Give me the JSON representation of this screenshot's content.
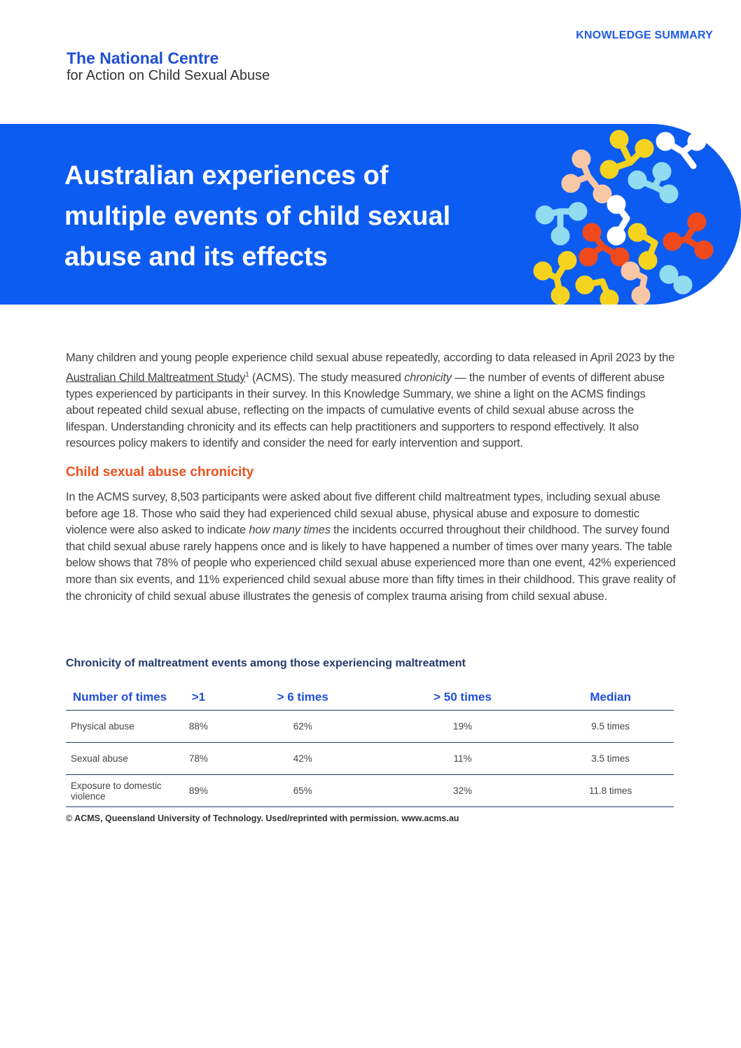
{
  "header": {
    "label": "KNOWLEDGE SUMMARY",
    "org_name": "The National Centre",
    "org_sub": "for Action on Child Sexual Abuse"
  },
  "banner": {
    "title_lines": [
      "Australian experiences of",
      "multiple events of child sexual",
      "abuse and its effects"
    ]
  },
  "intro": {
    "before_link": "Many children and young people experience child sexual abuse repeatedly, according to data released in April 2023 by the ",
    "link": "Australian Child Maltreatment Study",
    "footnote": "1",
    "after_link": " (ACMS). The study measured ",
    "term": "chronicity",
    "rest": "  — the number of events of different abuse types experienced by participants in their survey. In this Knowledge Summary, we shine a light on the ACMS findings about repeated child sexual abuse, reflecting on the impacts of cumulative events of child sexual abuse across the lifespan. Understanding chronicity and its effects can help practitioners and supporters to respond effectively. It also resources policy makers to identify and consider the need for early intervention and support."
  },
  "section": {
    "heading": "Child sexual abuse chronicity",
    "before_em": "In the ACMS survey, 8,503 participants were asked about five different child maltreatment types, including sexual abuse before age 18. Those who said they had experienced child sexual abuse, physical abuse and exposure to domestic violence were also asked to indicate ",
    "em": "how many times",
    "after_em": " the incidents occurred throughout their childhood. The survey found that child sexual abuse rarely happens once and is likely to have happened a number of times over many years. The table below shows that 78% of people who experienced child sexual abuse experienced more than one event, 42% experienced more than six events, and 11% experienced child sexual abuse more than fifty times in their childhood. This grave reality of the chronicity of child sexual abuse illustrates the genesis of complex trauma arising from child sexual abuse."
  },
  "table": {
    "caption": "Chronicity of maltreatment events among those experiencing maltreatment",
    "columns": [
      "Number of times",
      ">1",
      "> 6 times",
      "> 50 times",
      "Median"
    ],
    "rows": [
      [
        "Physical abuse",
        "88%",
        "62%",
        "19%",
        "9.5 times"
      ],
      [
        "Sexual abuse",
        "78%",
        "42%",
        "11%",
        "3.5 times"
      ],
      [
        "Exposure to domestic violence",
        "89%",
        "65%",
        "32%",
        "11.8 times"
      ]
    ],
    "source": "© ACMS, Queensland University of Technology. Used/reprinted with permission. www.acms.au"
  }
}
